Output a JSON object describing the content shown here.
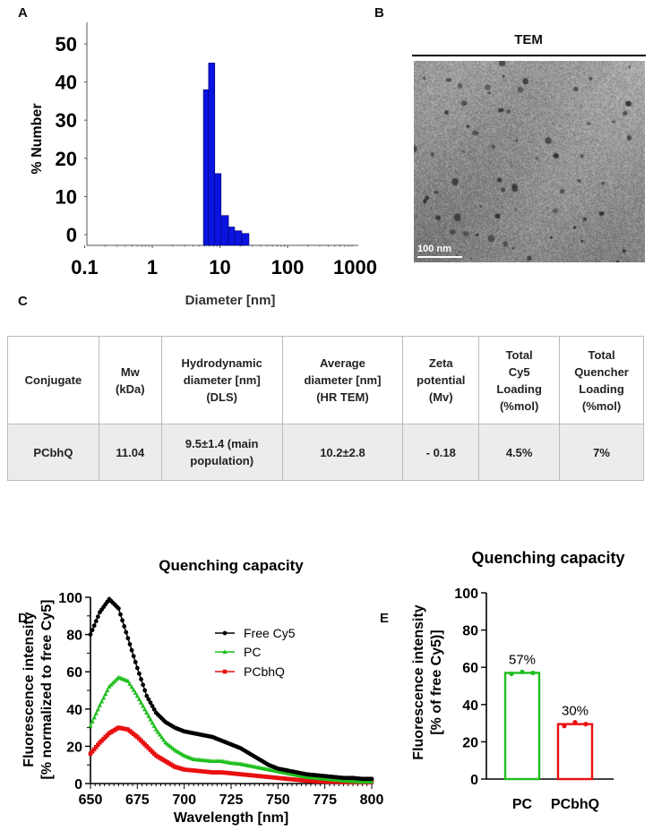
{
  "panels": {
    "a": "A",
    "b": "B",
    "c": "C",
    "d": "D",
    "e": "E"
  },
  "colors": {
    "dls_bar": "#0a14e0",
    "free_cy5": "#000000",
    "pc": "#1fbf1f",
    "pcbhq": "#e81010"
  },
  "tem": {
    "title": "TEM",
    "scale_bar": "100 nm"
  },
  "table": {
    "headers": [
      "Conjugate",
      "Mw\n(kDa)",
      "Hydrodynamic\ndiameter [nm]\n(DLS)",
      "Average\ndiameter [nm]\n(HR TEM)",
      "Zeta\npotential\n(Mv)",
      "Total\nCy5\nLoading\n(%mol)",
      "Total\nQuencher\nLoading\n(%mol)"
    ],
    "rows": [
      [
        "PCbhQ",
        "11.04",
        "9.5±1.4 (main\npopulation)",
        "10.2±2.8",
        "- 0.18",
        "4.5%",
        "7%"
      ]
    ]
  },
  "chart_data": [
    {
      "id": "A",
      "type": "bar",
      "title": "",
      "xlabel": "Diameter [nm]",
      "ylabel": "% Number",
      "xscale": "log",
      "xlim": [
        0.1,
        1500
      ],
      "ylim": [
        0,
        50
      ],
      "xticks": [
        "0.1",
        "1",
        "10",
        "100",
        "1000"
      ],
      "xtick_values": [
        0.1,
        1,
        10,
        100,
        1000
      ],
      "yticks": [
        "0",
        "10",
        "20",
        "30",
        "40",
        "50"
      ],
      "ytick_values": [
        0,
        10,
        20,
        30,
        40,
        50
      ],
      "bin_edges": [
        5.7,
        6.8,
        8.4,
        10.4,
        13.4,
        16.5,
        21.1,
        26.9
      ],
      "values": [
        38,
        45,
        16,
        5,
        2,
        1,
        0.3
      ]
    },
    {
      "id": "D",
      "type": "line",
      "title": "Quenching capacity",
      "xlabel": "Wavelength [nm]",
      "ylabel": [
        "Fluorescence intensity",
        "[% normalized to free Cy5]"
      ],
      "xlim": [
        650,
        800
      ],
      "ylim": [
        0,
        100
      ],
      "xticks": [
        "650",
        "675",
        "700",
        "725",
        "750",
        "775",
        "800"
      ],
      "xtick_values": [
        650,
        675,
        700,
        725,
        750,
        775,
        800
      ],
      "yticks": [
        "0",
        "20",
        "40",
        "60",
        "80",
        "100"
      ],
      "ytick_values": [
        0,
        20,
        40,
        60,
        80,
        100
      ],
      "legend_position": "top-right",
      "x": [
        650,
        655,
        660,
        665,
        670,
        675,
        680,
        685,
        690,
        695,
        700,
        705,
        710,
        715,
        720,
        725,
        730,
        735,
        740,
        745,
        750,
        755,
        760,
        765,
        770,
        775,
        780,
        785,
        790,
        795,
        800
      ],
      "series": [
        {
          "name": "Free Cy5",
          "marker": "circle",
          "values": [
            80,
            92,
            99,
            94,
            78,
            62,
            47,
            38,
            33,
            30,
            28,
            27,
            26,
            25,
            23,
            21,
            19,
            16,
            13,
            10,
            8,
            7,
            6,
            5,
            4.5,
            4,
            3.5,
            3,
            3,
            2.5,
            2.5
          ]
        },
        {
          "name": "PC",
          "marker": "triangle",
          "values": [
            31,
            42,
            52,
            57,
            55,
            47,
            38,
            29,
            22,
            18,
            15,
            13,
            12.5,
            12,
            12,
            11,
            10.5,
            9.5,
            8.5,
            7.5,
            6.5,
            5.5,
            4.5,
            3.5,
            3,
            2.5,
            2,
            1.5,
            1.2,
            1,
            1
          ]
        },
        {
          "name": "PCbhQ",
          "marker": "square",
          "values": [
            16,
            22,
            27,
            30,
            29,
            25,
            20,
            15,
            12,
            9,
            7.5,
            7,
            6.5,
            6,
            6,
            5.5,
            5,
            4.5,
            4,
            3.5,
            3,
            2.5,
            2,
            1.5,
            1.2,
            1,
            1,
            0.8,
            0.8,
            0.8,
            0.8
          ]
        }
      ]
    },
    {
      "id": "E",
      "type": "bar",
      "title": "Quenching capacity",
      "xlabel": "",
      "ylabel": [
        "Fluorescence intensity",
        "[% of free Cy5)]"
      ],
      "ylim": [
        0,
        100
      ],
      "yticks": [
        "0",
        "20",
        "40",
        "60",
        "80",
        "100"
      ],
      "ytick_values": [
        0,
        20,
        40,
        60,
        80,
        100
      ],
      "categories": [
        "PC",
        "PCbhQ"
      ],
      "values": [
        57,
        29.5
      ],
      "data_labels": [
        "57%",
        "30%"
      ],
      "replicates": [
        [
          56.5,
          57.5,
          57
        ],
        [
          28.5,
          30.5,
          29.5
        ]
      ]
    }
  ]
}
